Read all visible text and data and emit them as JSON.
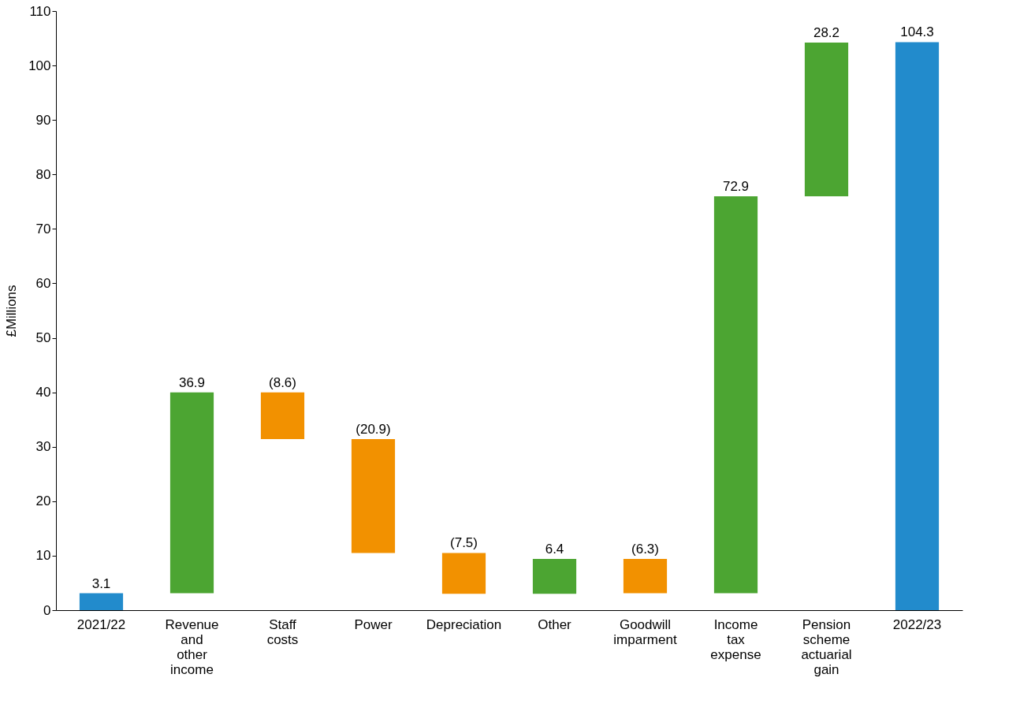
{
  "chart_data": {
    "type": "bar",
    "ylabel": "£Millions",
    "categories": [
      "2021/22",
      "Revenue and other income",
      "Staff costs",
      "Power",
      "Depreciation",
      "Other",
      "Goodwill imparment",
      "Income tax expense",
      "Pension scheme actuarial gain",
      "2022/23"
    ],
    "values": [
      3.1,
      36.9,
      -8.6,
      -20.9,
      -7.5,
      6.4,
      -6.3,
      72.9,
      28.2,
      104.3
    ],
    "base": [
      0,
      3.1,
      40.0,
      31.4,
      10.5,
      3.0,
      9.4,
      3.1,
      76.0,
      0
    ],
    "value_labels": [
      "3.1",
      "36.9",
      "(8.6)",
      "(20.9)",
      "(7.5)",
      "6.4",
      "(6.3)",
      "72.9",
      "28.2",
      "104.3"
    ],
    "colors": [
      "#228bcc",
      "#4ca532",
      "#f29100",
      "#f29100",
      "#f29100",
      "#4ca532",
      "#f29100",
      "#4ca532",
      "#4ca532",
      "#228bcc"
    ],
    "ylim": [
      0,
      110
    ],
    "yticks": [
      0,
      10,
      20,
      30,
      40,
      50,
      60,
      70,
      80,
      90,
      100,
      110
    ],
    "grid": false
  }
}
